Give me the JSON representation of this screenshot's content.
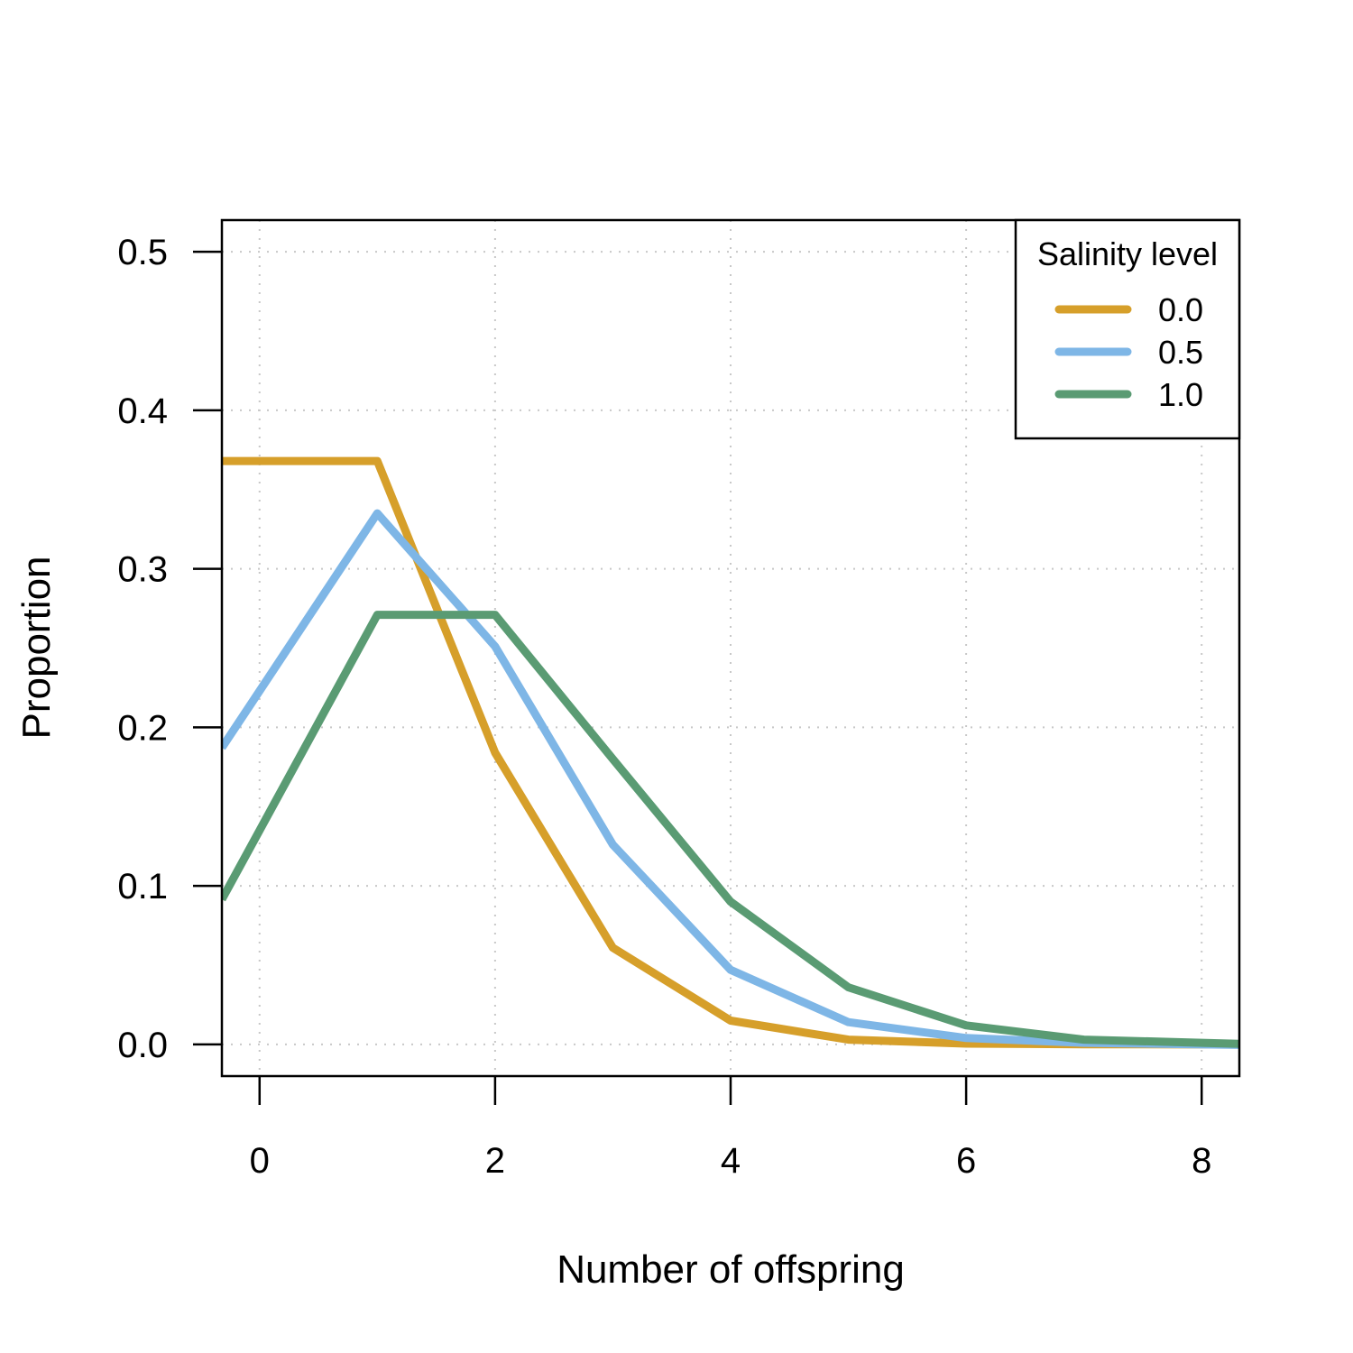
{
  "chart_data": {
    "type": "line",
    "xlabel": "Number of offspring",
    "ylabel": "Proportion",
    "xlim": [
      -0.32,
      8.32
    ],
    "ylim": [
      -0.02,
      0.52
    ],
    "x_ticks": [
      "0",
      "2",
      "4",
      "6",
      "8"
    ],
    "y_ticks": [
      "0.0",
      "0.1",
      "0.2",
      "0.3",
      "0.4",
      "0.5"
    ],
    "grid": true,
    "legend": {
      "title": "Salinity level",
      "position": "top-right"
    },
    "x": [
      0,
      1,
      2,
      3,
      4,
      5,
      6,
      7,
      8
    ],
    "series": [
      {
        "name": "0.0",
        "color": "#D69F2A",
        "values": [
          0.368,
          0.368,
          0.184,
          0.061,
          0.015,
          0.003,
          0.0005,
          0.0001,
          0.0
        ]
      },
      {
        "name": "0.5",
        "color": "#7EB6E6",
        "values": [
          0.223,
          0.335,
          0.251,
          0.126,
          0.047,
          0.014,
          0.004,
          0.001,
          0.0
        ]
      },
      {
        "name": "1.0",
        "color": "#5A9B73",
        "values": [
          0.135,
          0.271,
          0.271,
          0.18,
          0.09,
          0.036,
          0.012,
          0.003,
          0.001
        ]
      }
    ]
  }
}
